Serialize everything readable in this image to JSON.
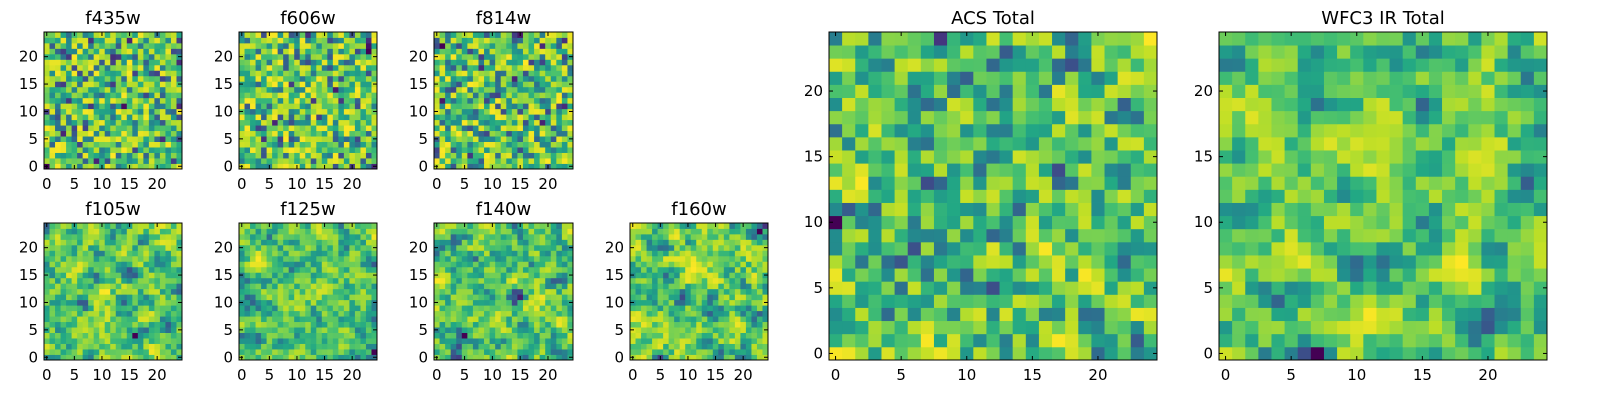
{
  "chart_data": [
    {
      "type": "heatmap",
      "title": "f435w",
      "x_ticks": [
        "0",
        "5",
        "10",
        "15",
        "20"
      ],
      "y_ticks": [
        "0",
        "5",
        "10",
        "15",
        "20"
      ],
      "grid_size": 25,
      "xlim": [
        0,
        24
      ],
      "ylim": [
        0,
        24
      ],
      "colormap": "viridis",
      "seed": 11,
      "smooth": 0
    },
    {
      "type": "heatmap",
      "title": "f606w",
      "x_ticks": [
        "0",
        "5",
        "10",
        "15",
        "20"
      ],
      "y_ticks": [
        "0",
        "5",
        "10",
        "15",
        "20"
      ],
      "grid_size": 25,
      "xlim": [
        0,
        24
      ],
      "ylim": [
        0,
        24
      ],
      "colormap": "viridis",
      "seed": 23,
      "smooth": 0
    },
    {
      "type": "heatmap",
      "title": "f814w",
      "x_ticks": [
        "0",
        "5",
        "10",
        "15",
        "20"
      ],
      "y_ticks": [
        "0",
        "5",
        "10",
        "15",
        "20"
      ],
      "grid_size": 25,
      "xlim": [
        0,
        24
      ],
      "ylim": [
        0,
        24
      ],
      "colormap": "viridis",
      "seed": 37,
      "smooth": 0
    },
    {
      "type": "heatmap",
      "title": "f105w",
      "x_ticks": [
        "0",
        "5",
        "10",
        "15",
        "20"
      ],
      "y_ticks": [
        "0",
        "5",
        "10",
        "15",
        "20"
      ],
      "grid_size": 25,
      "xlim": [
        0,
        24
      ],
      "ylim": [
        0,
        24
      ],
      "colormap": "viridis",
      "seed": 41,
      "smooth": 2
    },
    {
      "type": "heatmap",
      "title": "f125w",
      "x_ticks": [
        "0",
        "5",
        "10",
        "15",
        "20"
      ],
      "y_ticks": [
        "0",
        "5",
        "10",
        "15",
        "20"
      ],
      "grid_size": 25,
      "xlim": [
        0,
        24
      ],
      "ylim": [
        0,
        24
      ],
      "colormap": "viridis",
      "seed": 53,
      "smooth": 2
    },
    {
      "type": "heatmap",
      "title": "f140w",
      "x_ticks": [
        "0",
        "5",
        "10",
        "15",
        "20"
      ],
      "y_ticks": [
        "0",
        "5",
        "10",
        "15",
        "20"
      ],
      "grid_size": 25,
      "xlim": [
        0,
        24
      ],
      "ylim": [
        0,
        24
      ],
      "colormap": "viridis",
      "seed": 67,
      "smooth": 2
    },
    {
      "type": "heatmap",
      "title": "f160w",
      "x_ticks": [
        "0",
        "5",
        "10",
        "15",
        "20"
      ],
      "y_ticks": [
        "0",
        "5",
        "10",
        "15",
        "20"
      ],
      "grid_size": 25,
      "xlim": [
        0,
        24
      ],
      "ylim": [
        0,
        24
      ],
      "colormap": "viridis",
      "seed": 79,
      "smooth": 2
    },
    {
      "type": "heatmap",
      "title": "ACS Total",
      "x_ticks": [
        "0",
        "5",
        "10",
        "15",
        "20"
      ],
      "y_ticks": [
        "0",
        "5",
        "10",
        "15",
        "20"
      ],
      "grid_size": 25,
      "xlim": [
        0,
        24
      ],
      "ylim": [
        0,
        24
      ],
      "colormap": "viridis",
      "seed": 83,
      "smooth": 1
    },
    {
      "type": "heatmap",
      "title": "WFC3 IR Total",
      "x_ticks": [
        "0",
        "5",
        "10",
        "15",
        "20"
      ],
      "y_ticks": [
        "0",
        "5",
        "10",
        "15",
        "20"
      ],
      "grid_size": 25,
      "xlim": [
        0,
        24
      ],
      "ylim": [
        0,
        24
      ],
      "colormap": "viridis",
      "seed": 97,
      "smooth": 2
    }
  ]
}
